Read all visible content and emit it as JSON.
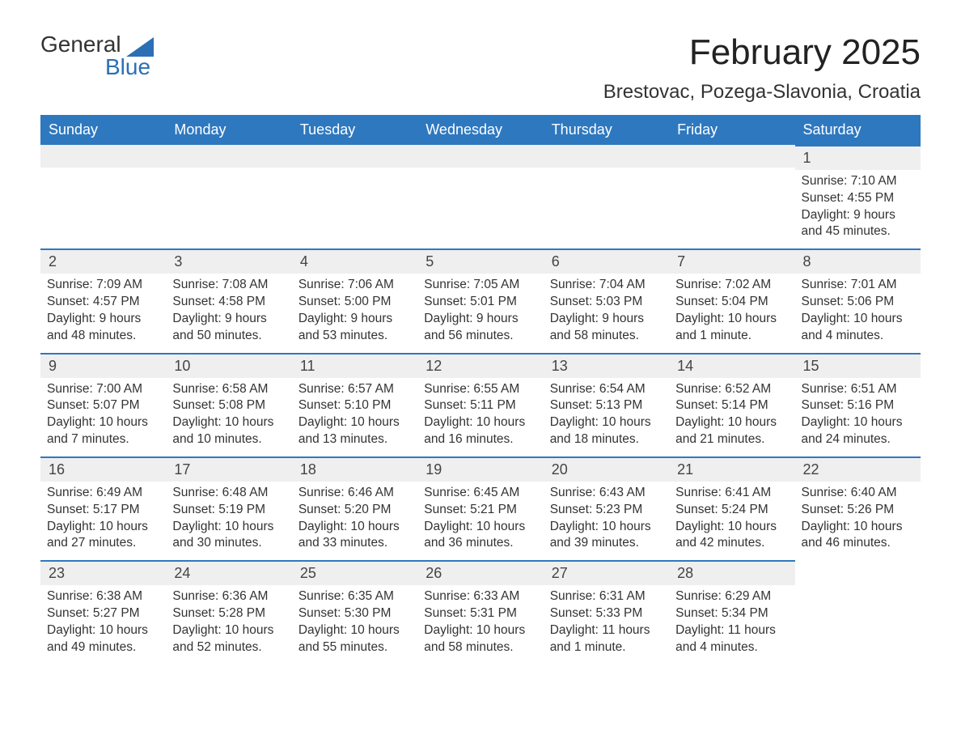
{
  "logo": {
    "word1": "General",
    "word2": "Blue"
  },
  "header": {
    "title": "February 2025",
    "location": "Brestovac, Pozega-Slavonia, Croatia"
  },
  "colors": {
    "header_bg": "#2e78bf",
    "header_text": "#ffffff",
    "row_border": "#2e78bf",
    "daynum_bg": "#efefef",
    "page_bg": "#ffffff",
    "text": "#333333",
    "logo_blue": "#2c6fb5"
  },
  "calendar": {
    "day_headers": [
      "Sunday",
      "Monday",
      "Tuesday",
      "Wednesday",
      "Thursday",
      "Friday",
      "Saturday"
    ],
    "weeks": [
      [
        null,
        null,
        null,
        null,
        null,
        null,
        {
          "day": "1",
          "sunrise": "Sunrise: 7:10 AM",
          "sunset": "Sunset: 4:55 PM",
          "daylight1": "Daylight: 9 hours",
          "daylight2": "and 45 minutes."
        }
      ],
      [
        {
          "day": "2",
          "sunrise": "Sunrise: 7:09 AM",
          "sunset": "Sunset: 4:57 PM",
          "daylight1": "Daylight: 9 hours",
          "daylight2": "and 48 minutes."
        },
        {
          "day": "3",
          "sunrise": "Sunrise: 7:08 AM",
          "sunset": "Sunset: 4:58 PM",
          "daylight1": "Daylight: 9 hours",
          "daylight2": "and 50 minutes."
        },
        {
          "day": "4",
          "sunrise": "Sunrise: 7:06 AM",
          "sunset": "Sunset: 5:00 PM",
          "daylight1": "Daylight: 9 hours",
          "daylight2": "and 53 minutes."
        },
        {
          "day": "5",
          "sunrise": "Sunrise: 7:05 AM",
          "sunset": "Sunset: 5:01 PM",
          "daylight1": "Daylight: 9 hours",
          "daylight2": "and 56 minutes."
        },
        {
          "day": "6",
          "sunrise": "Sunrise: 7:04 AM",
          "sunset": "Sunset: 5:03 PM",
          "daylight1": "Daylight: 9 hours",
          "daylight2": "and 58 minutes."
        },
        {
          "day": "7",
          "sunrise": "Sunrise: 7:02 AM",
          "sunset": "Sunset: 5:04 PM",
          "daylight1": "Daylight: 10 hours",
          "daylight2": "and 1 minute."
        },
        {
          "day": "8",
          "sunrise": "Sunrise: 7:01 AM",
          "sunset": "Sunset: 5:06 PM",
          "daylight1": "Daylight: 10 hours",
          "daylight2": "and 4 minutes."
        }
      ],
      [
        {
          "day": "9",
          "sunrise": "Sunrise: 7:00 AM",
          "sunset": "Sunset: 5:07 PM",
          "daylight1": "Daylight: 10 hours",
          "daylight2": "and 7 minutes."
        },
        {
          "day": "10",
          "sunrise": "Sunrise: 6:58 AM",
          "sunset": "Sunset: 5:08 PM",
          "daylight1": "Daylight: 10 hours",
          "daylight2": "and 10 minutes."
        },
        {
          "day": "11",
          "sunrise": "Sunrise: 6:57 AM",
          "sunset": "Sunset: 5:10 PM",
          "daylight1": "Daylight: 10 hours",
          "daylight2": "and 13 minutes."
        },
        {
          "day": "12",
          "sunrise": "Sunrise: 6:55 AM",
          "sunset": "Sunset: 5:11 PM",
          "daylight1": "Daylight: 10 hours",
          "daylight2": "and 16 minutes."
        },
        {
          "day": "13",
          "sunrise": "Sunrise: 6:54 AM",
          "sunset": "Sunset: 5:13 PM",
          "daylight1": "Daylight: 10 hours",
          "daylight2": "and 18 minutes."
        },
        {
          "day": "14",
          "sunrise": "Sunrise: 6:52 AM",
          "sunset": "Sunset: 5:14 PM",
          "daylight1": "Daylight: 10 hours",
          "daylight2": "and 21 minutes."
        },
        {
          "day": "15",
          "sunrise": "Sunrise: 6:51 AM",
          "sunset": "Sunset: 5:16 PM",
          "daylight1": "Daylight: 10 hours",
          "daylight2": "and 24 minutes."
        }
      ],
      [
        {
          "day": "16",
          "sunrise": "Sunrise: 6:49 AM",
          "sunset": "Sunset: 5:17 PM",
          "daylight1": "Daylight: 10 hours",
          "daylight2": "and 27 minutes."
        },
        {
          "day": "17",
          "sunrise": "Sunrise: 6:48 AM",
          "sunset": "Sunset: 5:19 PM",
          "daylight1": "Daylight: 10 hours",
          "daylight2": "and 30 minutes."
        },
        {
          "day": "18",
          "sunrise": "Sunrise: 6:46 AM",
          "sunset": "Sunset: 5:20 PM",
          "daylight1": "Daylight: 10 hours",
          "daylight2": "and 33 minutes."
        },
        {
          "day": "19",
          "sunrise": "Sunrise: 6:45 AM",
          "sunset": "Sunset: 5:21 PM",
          "daylight1": "Daylight: 10 hours",
          "daylight2": "and 36 minutes."
        },
        {
          "day": "20",
          "sunrise": "Sunrise: 6:43 AM",
          "sunset": "Sunset: 5:23 PM",
          "daylight1": "Daylight: 10 hours",
          "daylight2": "and 39 minutes."
        },
        {
          "day": "21",
          "sunrise": "Sunrise: 6:41 AM",
          "sunset": "Sunset: 5:24 PM",
          "daylight1": "Daylight: 10 hours",
          "daylight2": "and 42 minutes."
        },
        {
          "day": "22",
          "sunrise": "Sunrise: 6:40 AM",
          "sunset": "Sunset: 5:26 PM",
          "daylight1": "Daylight: 10 hours",
          "daylight2": "and 46 minutes."
        }
      ],
      [
        {
          "day": "23",
          "sunrise": "Sunrise: 6:38 AM",
          "sunset": "Sunset: 5:27 PM",
          "daylight1": "Daylight: 10 hours",
          "daylight2": "and 49 minutes."
        },
        {
          "day": "24",
          "sunrise": "Sunrise: 6:36 AM",
          "sunset": "Sunset: 5:28 PM",
          "daylight1": "Daylight: 10 hours",
          "daylight2": "and 52 minutes."
        },
        {
          "day": "25",
          "sunrise": "Sunrise: 6:35 AM",
          "sunset": "Sunset: 5:30 PM",
          "daylight1": "Daylight: 10 hours",
          "daylight2": "and 55 minutes."
        },
        {
          "day": "26",
          "sunrise": "Sunrise: 6:33 AM",
          "sunset": "Sunset: 5:31 PM",
          "daylight1": "Daylight: 10 hours",
          "daylight2": "and 58 minutes."
        },
        {
          "day": "27",
          "sunrise": "Sunrise: 6:31 AM",
          "sunset": "Sunset: 5:33 PM",
          "daylight1": "Daylight: 11 hours",
          "daylight2": "and 1 minute."
        },
        {
          "day": "28",
          "sunrise": "Sunrise: 6:29 AM",
          "sunset": "Sunset: 5:34 PM",
          "daylight1": "Daylight: 11 hours",
          "daylight2": "and 4 minutes."
        },
        null
      ]
    ]
  }
}
